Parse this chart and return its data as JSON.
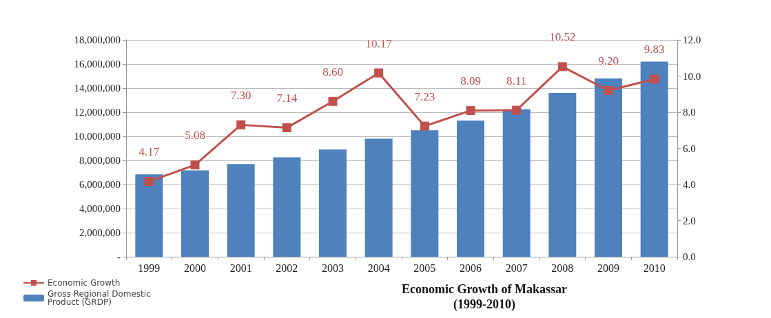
{
  "chart_data": {
    "type": "bar",
    "title": "Economic Growth of Makassar\n(1999-2010)",
    "categories": [
      "1999",
      "2000",
      "2001",
      "2002",
      "2003",
      "2004",
      "2005",
      "2006",
      "2007",
      "2008",
      "2009",
      "2010"
    ],
    "series": [
      {
        "name": "Economic Growth",
        "type": "line",
        "axis": "y2",
        "color": "#c0504d",
        "values": [
          4.17,
          5.08,
          7.3,
          7.14,
          8.6,
          10.17,
          7.23,
          8.09,
          8.11,
          10.52,
          9.2,
          9.83
        ],
        "value_labels": [
          "4.17",
          "5.08",
          "7.30",
          "7.14",
          "8.60",
          "10.17",
          "7.23",
          "8.09",
          "8.11",
          "10.52",
          "9.20",
          "9.83"
        ]
      },
      {
        "name": "Gross Regional Domestic Product (GRDP)",
        "color": "#4f81bd",
        "values": [
          6840000,
          7170000,
          7700000,
          8260000,
          8900000,
          9800000,
          10500000,
          11300000,
          12250000,
          13600000,
          14800000,
          16200000
        ]
      }
    ],
    "ylim": [
      0,
      18000000
    ],
    "yticks": [
      {
        "value": 0,
        "label": "-"
      },
      {
        "value": 2000000,
        "label": "2,000,000"
      },
      {
        "value": 4000000,
        "label": "4,000,000"
      },
      {
        "value": 6000000,
        "label": "6,000,000"
      },
      {
        "value": 8000000,
        "label": "8,000,000"
      },
      {
        "value": 10000000,
        "label": "10,000,000"
      },
      {
        "value": 12000000,
        "label": "12,000,000"
      },
      {
        "value": 14000000,
        "label": "14,000,000"
      },
      {
        "value": 16000000,
        "label": "16,000,000"
      },
      {
        "value": 18000000,
        "label": "18,000,000"
      }
    ],
    "y2lim": [
      0,
      12
    ],
    "y2ticks": [
      {
        "value": 0,
        "label": "0.0"
      },
      {
        "value": 2,
        "label": "2.0"
      },
      {
        "value": 4,
        "label": "4.0"
      },
      {
        "value": 6,
        "label": "6.0"
      },
      {
        "value": 8,
        "label": "8.0"
      },
      {
        "value": 10,
        "label": "10.0"
      },
      {
        "value": 12,
        "label": "12.0"
      }
    ],
    "grid": "y",
    "legend": "bottom left",
    "marker": "square"
  }
}
